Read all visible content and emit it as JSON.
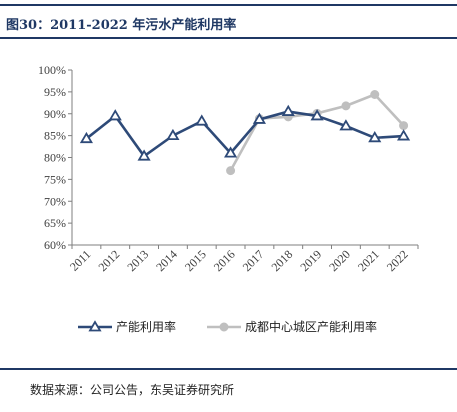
{
  "header": {
    "title": "图30：2011-2022 年污水产能利用率"
  },
  "footer": {
    "source": "数据来源：公司公告，东吴证券研究所"
  },
  "chart_data": {
    "type": "line",
    "title": "图30：2011-2022 年污水产能利用率",
    "x": [
      "2011",
      "2012",
      "2013",
      "2014",
      "2015",
      "2016",
      "2017",
      "2018",
      "2019",
      "2020",
      "2021",
      "2022"
    ],
    "yticks": [
      "60%",
      "65%",
      "70%",
      "75%",
      "80%",
      "85%",
      "90%",
      "95%",
      "100%"
    ],
    "ylim": [
      60,
      100
    ],
    "legend_position": "bottom",
    "grid": false,
    "series": [
      {
        "name": "产能利用率",
        "color": "#2e4a78",
        "marker": "triangle",
        "values": [
          84.3,
          89.5,
          80.3,
          85.0,
          88.3,
          81.0,
          88.7,
          90.5,
          89.5,
          87.2,
          84.5,
          84.9
        ]
      },
      {
        "name": "成都中心城区产能利用率",
        "color": "#bfbfbf",
        "marker": "circle",
        "values": [
          null,
          null,
          null,
          null,
          null,
          77.0,
          88.9,
          89.3,
          90.1,
          91.8,
          94.4,
          87.3
        ]
      }
    ]
  }
}
